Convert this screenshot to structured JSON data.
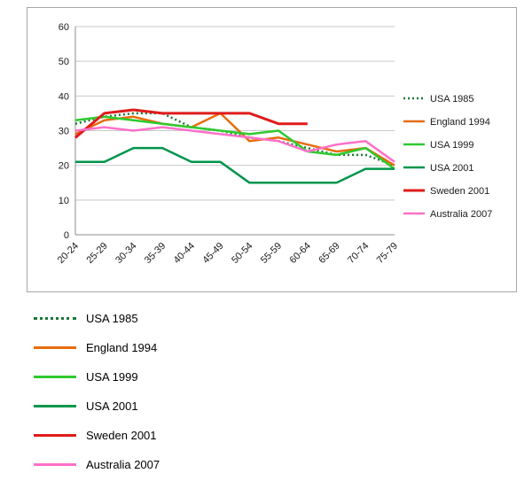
{
  "chart_data": {
    "type": "line",
    "title": "",
    "xlabel": "",
    "ylabel": "",
    "ylim": [
      0,
      60
    ],
    "ytick_step": 10,
    "y_tick_labels": [
      "0",
      "10",
      "20",
      "30",
      "40",
      "50",
      "60"
    ],
    "grid": "horizontal",
    "legend_position": "right",
    "categories": [
      "20-24",
      "25-29",
      "30-34",
      "35-39",
      "40-44",
      "45-49",
      "50-54",
      "55-59",
      "60-64",
      "65-69",
      "70-74",
      "75-79"
    ],
    "series": [
      {
        "name": "USA 1985",
        "color": "#1b7837",
        "dashed": true,
        "width": 2.5,
        "values": [
          32,
          34,
          35,
          35,
          31,
          30,
          28,
          27,
          25,
          23,
          23,
          20
        ]
      },
      {
        "name": "England 1994",
        "color": "#e66c0e",
        "dashed": false,
        "width": 2.5,
        "values": [
          29,
          33,
          34,
          32,
          31,
          35,
          27,
          28,
          26,
          24,
          25,
          20
        ]
      },
      {
        "name": "USA 1999",
        "color": "#2eca2e",
        "dashed": false,
        "width": 2.5,
        "values": [
          33,
          34,
          33,
          32,
          31,
          30,
          29,
          30,
          24,
          23,
          25,
          19
        ]
      },
      {
        "name": "USA 2001",
        "color": "#00954c",
        "dashed": false,
        "width": 2.5,
        "values": [
          21,
          21,
          25,
          25,
          21,
          21,
          15,
          15,
          15,
          15,
          19,
          19
        ]
      },
      {
        "name": "Sweden 2001",
        "color": "#e01b1b",
        "dashed": false,
        "width": 3,
        "values": [
          28,
          35,
          36,
          35,
          35,
          35,
          35,
          32,
          32,
          null,
          null,
          null
        ]
      },
      {
        "name": "Australia 2007",
        "color": "#ff70c8",
        "dashed": false,
        "width": 2.5,
        "values": [
          30,
          31,
          30,
          31,
          30,
          29,
          28,
          27,
          24,
          26,
          27,
          21
        ]
      }
    ]
  }
}
